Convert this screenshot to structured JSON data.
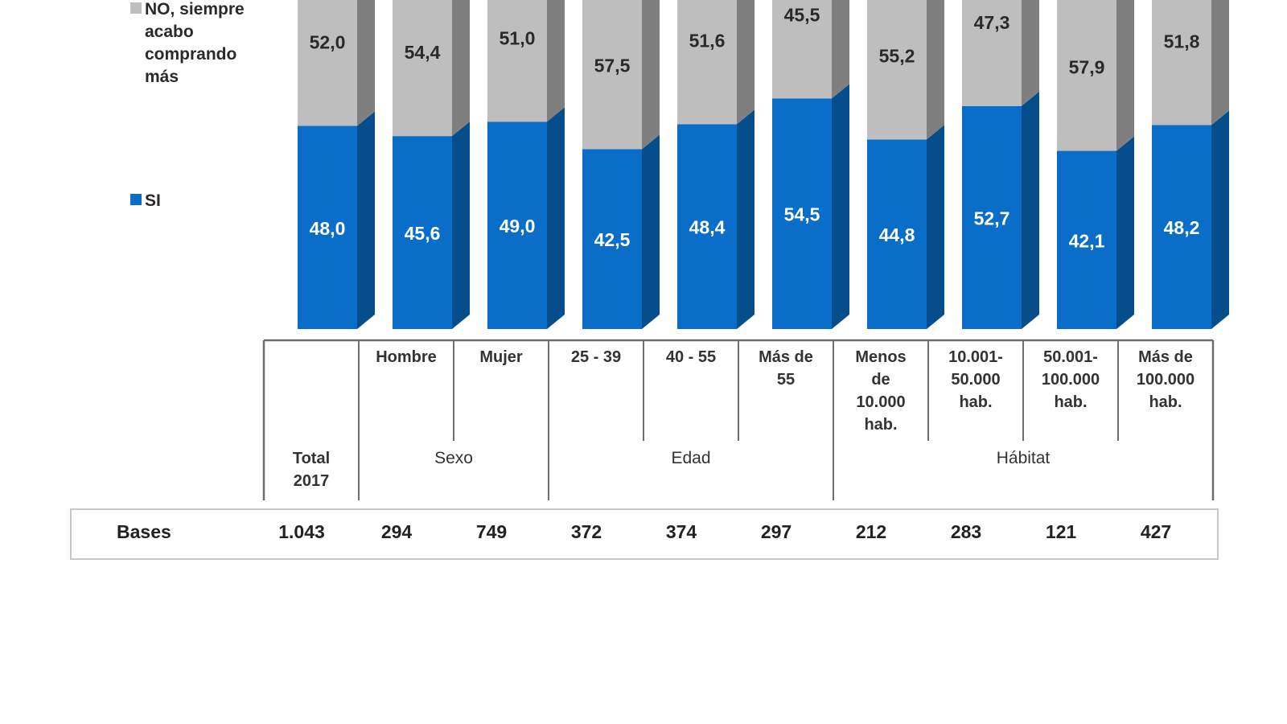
{
  "chart_data": {
    "type": "bar",
    "stacked": true,
    "orientation": "vertical",
    "units": "%",
    "ylim": [
      0,
      100
    ],
    "grid": false,
    "legend_position": "left",
    "categories": [
      "Total 2017",
      "Hombre",
      "Mujer",
      "25 - 39",
      "40 - 55",
      "Más de 55",
      "Menos de 10.000 hab.",
      "10.001-50.000 hab.",
      "50.001-100.000 hab.",
      "Más de 100.000 hab."
    ],
    "series": [
      {
        "name": "SI",
        "color": "#0a6ec8",
        "side_color": "#064d8c",
        "values": [
          48.0,
          45.6,
          49.0,
          42.5,
          48.4,
          54.5,
          44.8,
          52.7,
          42.1,
          48.2
        ],
        "labels": [
          "48,0",
          "45,6",
          "49,0",
          "42,5",
          "48,4",
          "54,5",
          "44,8",
          "52,7",
          "42,1",
          "48,2"
        ]
      },
      {
        "name": "NO, siempre acabo comprando más",
        "color": "#bebebe",
        "side_color": "#7f7f7f",
        "values": [
          52.0,
          54.4,
          51.0,
          57.5,
          51.6,
          45.5,
          55.2,
          47.3,
          57.9,
          51.8
        ],
        "labels": [
          "52,0",
          "54,4",
          "51,0",
          "57,5",
          "51,6",
          "45,5",
          "55,2",
          "47,3",
          "57,9",
          "51,8"
        ]
      }
    ],
    "legend": {
      "no_lines": [
        "NO, siempre",
        "acabo",
        "comprando",
        "más"
      ],
      "si": "SI"
    },
    "axis_table": {
      "headers": [
        {
          "lines": [
            "Total",
            "2017"
          ]
        },
        {
          "lines": [
            "Hombre"
          ]
        },
        {
          "lines": [
            "Mujer"
          ]
        },
        {
          "lines": [
            "25 - 39"
          ]
        },
        {
          "lines": [
            "40 - 55"
          ]
        },
        {
          "lines": [
            "Más de",
            "55"
          ]
        },
        {
          "lines": [
            "Menos",
            "de",
            "10.000",
            "hab."
          ]
        },
        {
          "lines": [
            "10.001-",
            "50.000",
            "hab."
          ]
        },
        {
          "lines": [
            "50.001-",
            "100.000",
            "hab."
          ]
        },
        {
          "lines": [
            "Más de",
            "100.000",
            "hab."
          ]
        }
      ],
      "groups": [
        "Sexo",
        "Edad",
        "Hábitat"
      ]
    },
    "bases": {
      "label": "Bases",
      "values": [
        "1.043",
        "294",
        "749",
        "372",
        "374",
        "297",
        "212",
        "283",
        "121",
        "427"
      ]
    }
  }
}
